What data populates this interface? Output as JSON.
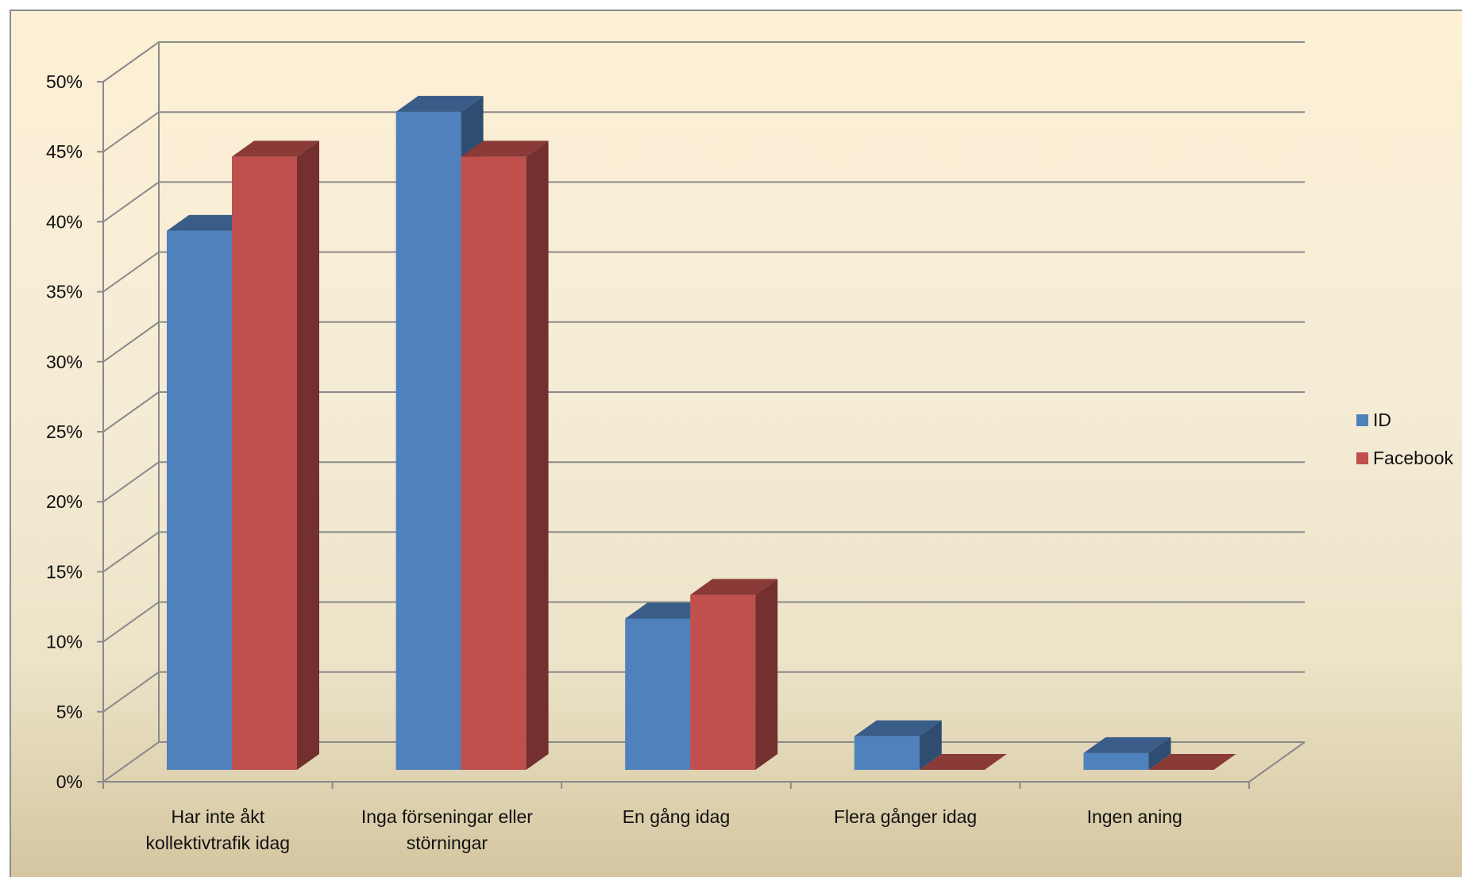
{
  "chart_data": {
    "type": "bar",
    "style": "3d-clustered-column",
    "categories": [
      [
        "Har inte åkt",
        "kollektivtrafik idag"
      ],
      [
        "Inga förseningar eller",
        "störningar"
      ],
      [
        "En gång idag"
      ],
      [
        "Flera gånger idag"
      ],
      [
        "Ingen aning"
      ]
    ],
    "series": [
      {
        "name": "ID",
        "color": "#4f81bd",
        "values": [
          38.5,
          47,
          10.8,
          2.4,
          1.2
        ]
      },
      {
        "name": "Facebook",
        "color": "#c0504d",
        "values": [
          43.8,
          43.8,
          12.5,
          0,
          0
        ]
      }
    ],
    "yticks": [
      "0%",
      "5%",
      "10%",
      "15%",
      "20%",
      "25%",
      "30%",
      "35%",
      "40%",
      "45%",
      "50%"
    ],
    "ylim": [
      0,
      50
    ],
    "grid": true,
    "legend": "right",
    "title": "",
    "xlabel": "",
    "ylabel": ""
  }
}
